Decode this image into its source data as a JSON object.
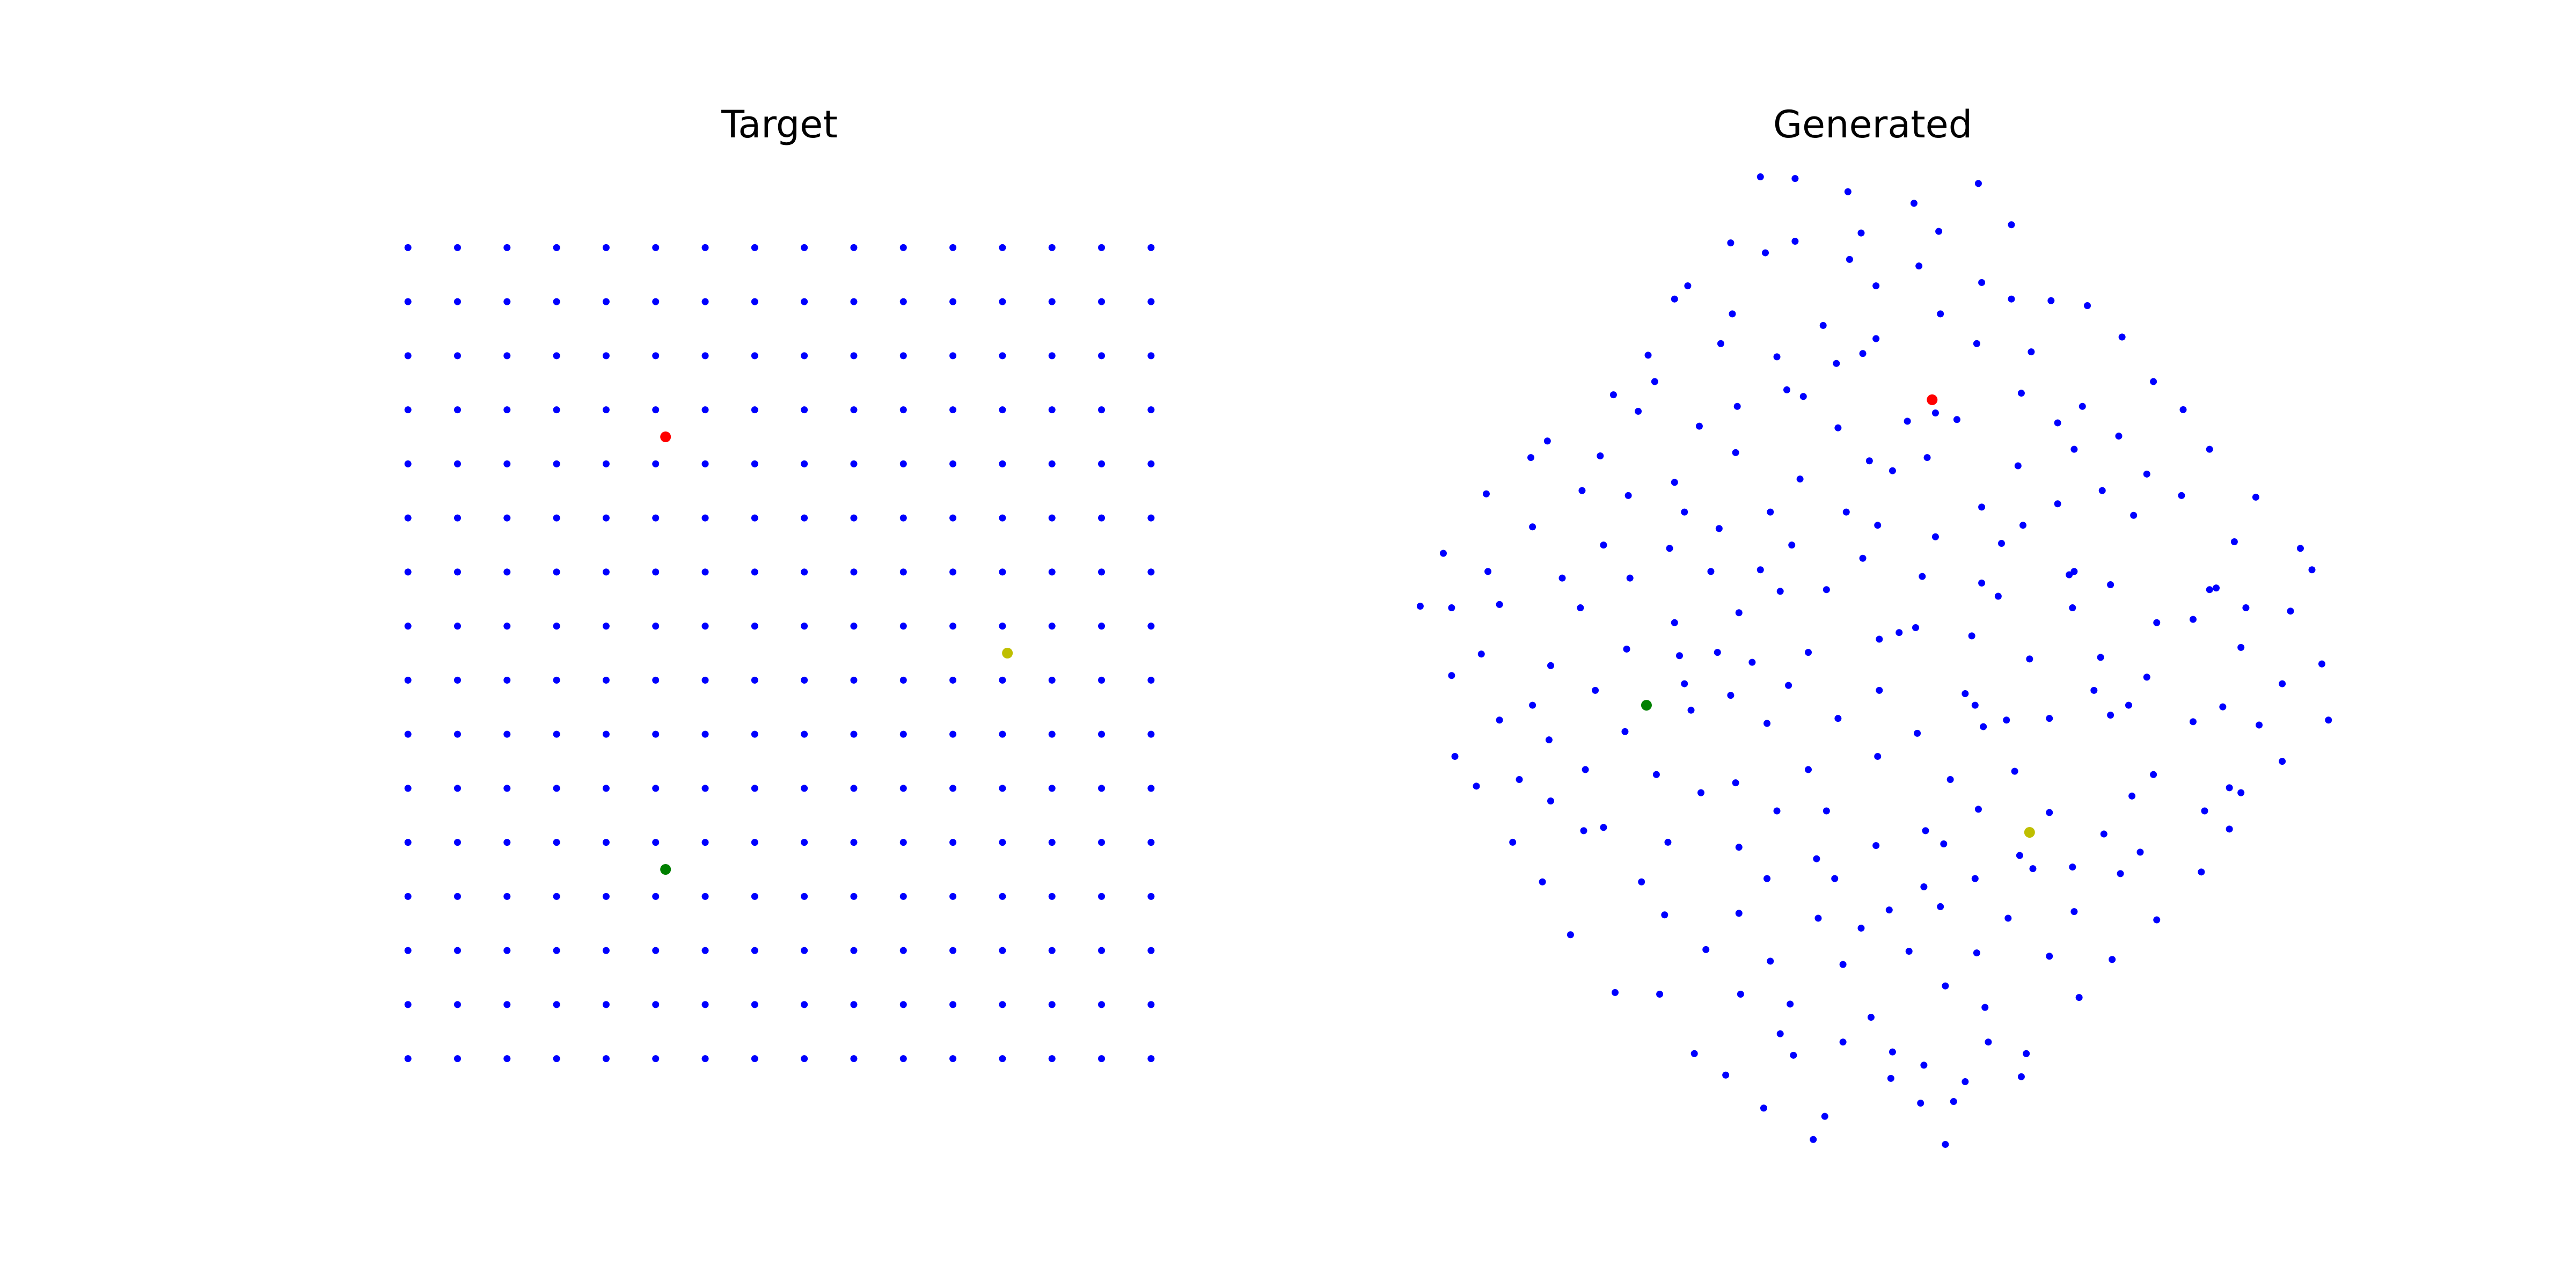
{
  "chart_data": [
    {
      "type": "scatter",
      "title": "Target",
      "xlim": [
        -0.5,
        15.5
      ],
      "ylim": [
        -0.5,
        15.5
      ],
      "series": [
        {
          "color": "#0000ff",
          "x": [
            0,
            1,
            2,
            3,
            4,
            5,
            6,
            7,
            8,
            9,
            10,
            11,
            12,
            13,
            14,
            15,
            0,
            1,
            2,
            3,
            4,
            5,
            6,
            7,
            8,
            9,
            10,
            11,
            12,
            13,
            14,
            15,
            0,
            1,
            2,
            3,
            4,
            5,
            6,
            7,
            8,
            9,
            10,
            11,
            12,
            13,
            14,
            15,
            0,
            1,
            2,
            3,
            4,
            5,
            6,
            7,
            8,
            9,
            10,
            11,
            12,
            13,
            14,
            15,
            0,
            1,
            2,
            3,
            4,
            5,
            6,
            7,
            8,
            9,
            10,
            11,
            12,
            13,
            14,
            15,
            0,
            1,
            2,
            3,
            4,
            5,
            6,
            7,
            8,
            9,
            10,
            11,
            12,
            13,
            14,
            15,
            0,
            1,
            2,
            3,
            4,
            5,
            6,
            7,
            8,
            9,
            10,
            11,
            12,
            13,
            14,
            15,
            0,
            1,
            2,
            3,
            4,
            5,
            6,
            7,
            8,
            9,
            10,
            11,
            12,
            13,
            14,
            15,
            0,
            1,
            2,
            3,
            4,
            5,
            6,
            7,
            8,
            9,
            10,
            11,
            12,
            13,
            14,
            15,
            0,
            1,
            2,
            3,
            4,
            5,
            6,
            7,
            8,
            9,
            10,
            11,
            12,
            13,
            14,
            15,
            0,
            1,
            2,
            3,
            4,
            5,
            6,
            7,
            8,
            9,
            10,
            11,
            12,
            13,
            14,
            15,
            0,
            1,
            2,
            3,
            4,
            5,
            6,
            7,
            8,
            9,
            10,
            11,
            12,
            13,
            14,
            15,
            0,
            1,
            2,
            3,
            4,
            5,
            6,
            7,
            8,
            9,
            10,
            11,
            12,
            13,
            14,
            15,
            0,
            1,
            2,
            3,
            4,
            5,
            6,
            7,
            8,
            9,
            10,
            11,
            12,
            13,
            14,
            15,
            0,
            1,
            2,
            3,
            4,
            5,
            6,
            7,
            8,
            9,
            10,
            11,
            12,
            13,
            14,
            15,
            0,
            1,
            2,
            3,
            4,
            5,
            6,
            7,
            8,
            9,
            10,
            11,
            12,
            13,
            14,
            15
          ],
          "y": [
            15,
            15,
            15,
            15,
            15,
            15,
            15,
            15,
            15,
            15,
            15,
            15,
            15,
            15,
            15,
            15,
            14,
            14,
            14,
            14,
            14,
            14,
            14,
            14,
            14,
            14,
            14,
            14,
            14,
            14,
            14,
            14,
            13,
            13,
            13,
            13,
            13,
            13,
            13,
            13,
            13,
            13,
            13,
            13,
            13,
            13,
            13,
            13,
            12,
            12,
            12,
            12,
            12,
            12,
            12,
            12,
            12,
            12,
            12,
            12,
            12,
            12,
            12,
            12,
            11,
            11,
            11,
            11,
            11,
            11,
            11,
            11,
            11,
            11,
            11,
            11,
            11,
            11,
            11,
            11,
            10,
            10,
            10,
            10,
            10,
            10,
            10,
            10,
            10,
            10,
            10,
            10,
            10,
            10,
            10,
            10,
            9,
            9,
            9,
            9,
            9,
            9,
            9,
            9,
            9,
            9,
            9,
            9,
            9,
            9,
            9,
            9,
            8,
            8,
            8,
            8,
            8,
            8,
            8,
            8,
            8,
            8,
            8,
            8,
            8,
            8,
            8,
            8,
            7,
            7,
            7,
            7,
            7,
            7,
            7,
            7,
            7,
            7,
            7,
            7,
            7,
            7,
            7,
            7,
            6,
            6,
            6,
            6,
            6,
            6,
            6,
            6,
            6,
            6,
            6,
            6,
            6,
            6,
            6,
            6,
            5,
            5,
            5,
            5,
            5,
            5,
            5,
            5,
            5,
            5,
            5,
            5,
            5,
            5,
            5,
            5,
            4,
            4,
            4,
            4,
            4,
            4,
            4,
            4,
            4,
            4,
            4,
            4,
            4,
            4,
            4,
            4,
            3,
            3,
            3,
            3,
            3,
            3,
            3,
            3,
            3,
            3,
            3,
            3,
            3,
            3,
            3,
            3,
            2,
            2,
            2,
            2,
            2,
            2,
            2,
            2,
            2,
            2,
            2,
            2,
            2,
            2,
            2,
            2,
            1,
            1,
            1,
            1,
            1,
            1,
            1,
            1,
            1,
            1,
            1,
            1,
            1,
            1,
            1,
            1,
            0,
            0,
            0,
            0,
            0,
            0,
            0,
            0,
            0,
            0,
            0,
            0,
            0,
            0,
            0,
            0
          ]
        },
        {
          "color": "#ff0000",
          "x": [
            5.2
          ],
          "y": [
            11.5
          ]
        },
        {
          "color": "#bfbf00",
          "x": [
            12.1
          ],
          "y": [
            7.5
          ]
        },
        {
          "color": "#008000",
          "x": [
            5.2
          ],
          "y": [
            3.5
          ]
        }
      ]
    },
    {
      "type": "scatter",
      "title": "Generated",
      "xlim": [
        855,
        1413
      ],
      "ylim": [
        100,
        700
      ],
      "series": [
        {
          "color": "#0000ff",
          "x": [
            1066,
            1087,
            1198,
            1119,
            1159,
            1218,
            1174,
            1127,
            1048,
            1087,
            1069,
            1120,
            1162,
            1136,
            1022,
            1014,
            1200,
            1218,
            1242,
            1264,
            1049,
            1175,
            1104,
            1285,
            1042,
            1197,
            1136,
            1128,
            1076,
            1112,
            1230,
            998,
            1002,
            1304,
            1082,
            1092,
            977,
            1224,
            992,
            1052,
            1261,
            1172,
            1185,
            1155,
            1246,
            1322,
            1029,
            1113,
            1283,
            937,
            1256,
            927,
            1167,
            1051,
            969,
            1132,
            1146,
            1222,
            1090,
            1300,
            1338,
            1014,
            958,
            986,
            1321,
            1366,
            900,
            1273,
            1246,
            1200,
            1020,
            1118,
            1072,
            1292,
            1137,
            1041,
            928,
            1225,
            1353,
            1172,
            971,
            1011,
            1085,
            1212,
            874,
            1393,
            1128,
            1036,
            1066,
            901,
            1400,
            1256,
            1253,
            946,
            987,
            1164,
            1200,
            1278,
            1338,
            1342,
            1078,
            1106,
            1210,
            860,
            879,
            908,
            957,
            1255,
            1360,
            1387,
            1053,
            1306,
            1328,
            1014,
            1160,
            1150,
            1138,
            1194,
            1040,
            1095,
            1357,
            897,
            985,
            1017,
            1061,
            1229,
            1272,
            1406,
            939,
            879,
            1300,
            1020,
            1083,
            1138,
            1190,
            1268,
            966,
            1048,
            1382,
            928,
            1196,
            1024,
            1289,
            1346,
            1113,
            1215,
            1241,
            1070,
            1201,
            1278,
            1368,
            1410,
            908,
            1328,
            984,
            938,
            1161,
            1003,
            881,
            1137,
            1382,
            960,
            1095,
            1220,
            920,
            1304,
            1051,
            1181,
            894,
            1030,
            1350,
            1357,
            939,
            1291,
            1076,
            1106,
            1198,
            1241,
            1335,
            959,
            971,
            1166,
            1177,
            1274,
            1350,
            1010,
            916,
            1053,
            1136,
            1296,
            1223,
            1100,
            1231,
            1255,
            1284,
            1333,
            1070,
            1111,
            1196,
            934,
            994,
            1165,
            1175,
            1053,
            1008,
            1144,
            1256,
            1101,
            1216,
            1306,
            951,
            1127,
            1033,
            1072,
            1156,
            1197,
            1241,
            1279,
            1116,
            1178,
            978,
            1005,
            1054,
            1084,
            1259,
            1202,
            1133,
            1078,
            1116,
            1204,
            1086,
            1146,
            1227,
            1026,
            1165,
            1045,
            1224,
            1145,
            1190,
            1068,
            1163,
            1183,
            1105,
            1098,
            1178
          ],
          "y": [
            693,
            692,
            689,
            684,
            677,
            664,
            660,
            659,
            653,
            654,
            647,
            643,
            639,
            627,
            627,
            619,
            629,
            619,
            618,
            615,
            610,
            610,
            603,
            596,
            592,
            592,
            595,
            586,
            584,
            580,
            587,
            585,
            569,
            569,
            564,
            560,
            561,
            562,
            551,
            554,
            554,
            550,
            546,
            545,
            544,
            552,
            542,
            541,
            536,
            533,
            528,
            523,
            523,
            526,
            524,
            521,
            515,
            518,
            510,
            513,
            528,
            508,
            503,
            500,
            500,
            499,
            501,
            503,
            495,
            493,
            490,
            490,
            490,
            488,
            482,
            480,
            481,
            482,
            472,
            475,
            470,
            468,
            470,
            471,
            465,
            468,
            462,
            454,
            455,
            454,
            455,
            454,
            452,
            450,
            450,
            451,
            447,
            446,
            443,
            444,
            442,
            443,
            439,
            433,
            432,
            434,
            432,
            432,
            432,
            430,
            429,
            423,
            425,
            423,
            420,
            417,
            413,
            415,
            405,
            405,
            408,
            404,
            407,
            403,
            399,
            401,
            402,
            398,
            397,
            391,
            390,
            386,
            385,
            382,
            380,
            382,
            382,
            379,
            386,
            373,
            373,
            370,
            373,
            372,
            365,
            364,
            365,
            362,
            360,
            367,
            361,
            364,
            364,
            363,
            357,
            352,
            356,
            331,
            342,
            342,
            339,
            334,
            334,
            333,
            328,
            331,
            326,
            328,
            324,
            320,
            323,
            320,
            315,
            318,
            309,
            309,
            310,
            308,
            309,
            297,
            299,
            297,
            289,
            295,
            298,
            290,
            290,
            287,
            288,
            284,
            282,
            280,
            274,
            275,
            271,
            272,
            268,
            268,
            268,
            266,
            266,
            263,
            251,
            247,
            246,
            249,
            248,
            244,
            244,
            243,
            234,
            238,
            225,
            218,
            224,
            223,
            221,
            219,
            216,
            203,
            199,
            198,
            198,
            192,
            196,
            190,
            184,
            174,
            169,
            169,
            161,
            163,
            162,
            162,
            155,
            149,
            148,
            147,
            145,
            129,
            132,
            133,
            124,
            110,
            107
          ]
        },
        {
          "color": "#ff0000",
          "x": [
            1170
          ],
          "y": [
            558
          ]
        },
        {
          "color": "#bfbf00",
          "x": [
            1229
          ],
          "y": [
            296
          ]
        },
        {
          "color": "#008000",
          "x": [
            997
          ],
          "y": [
            373
          ]
        }
      ]
    }
  ]
}
